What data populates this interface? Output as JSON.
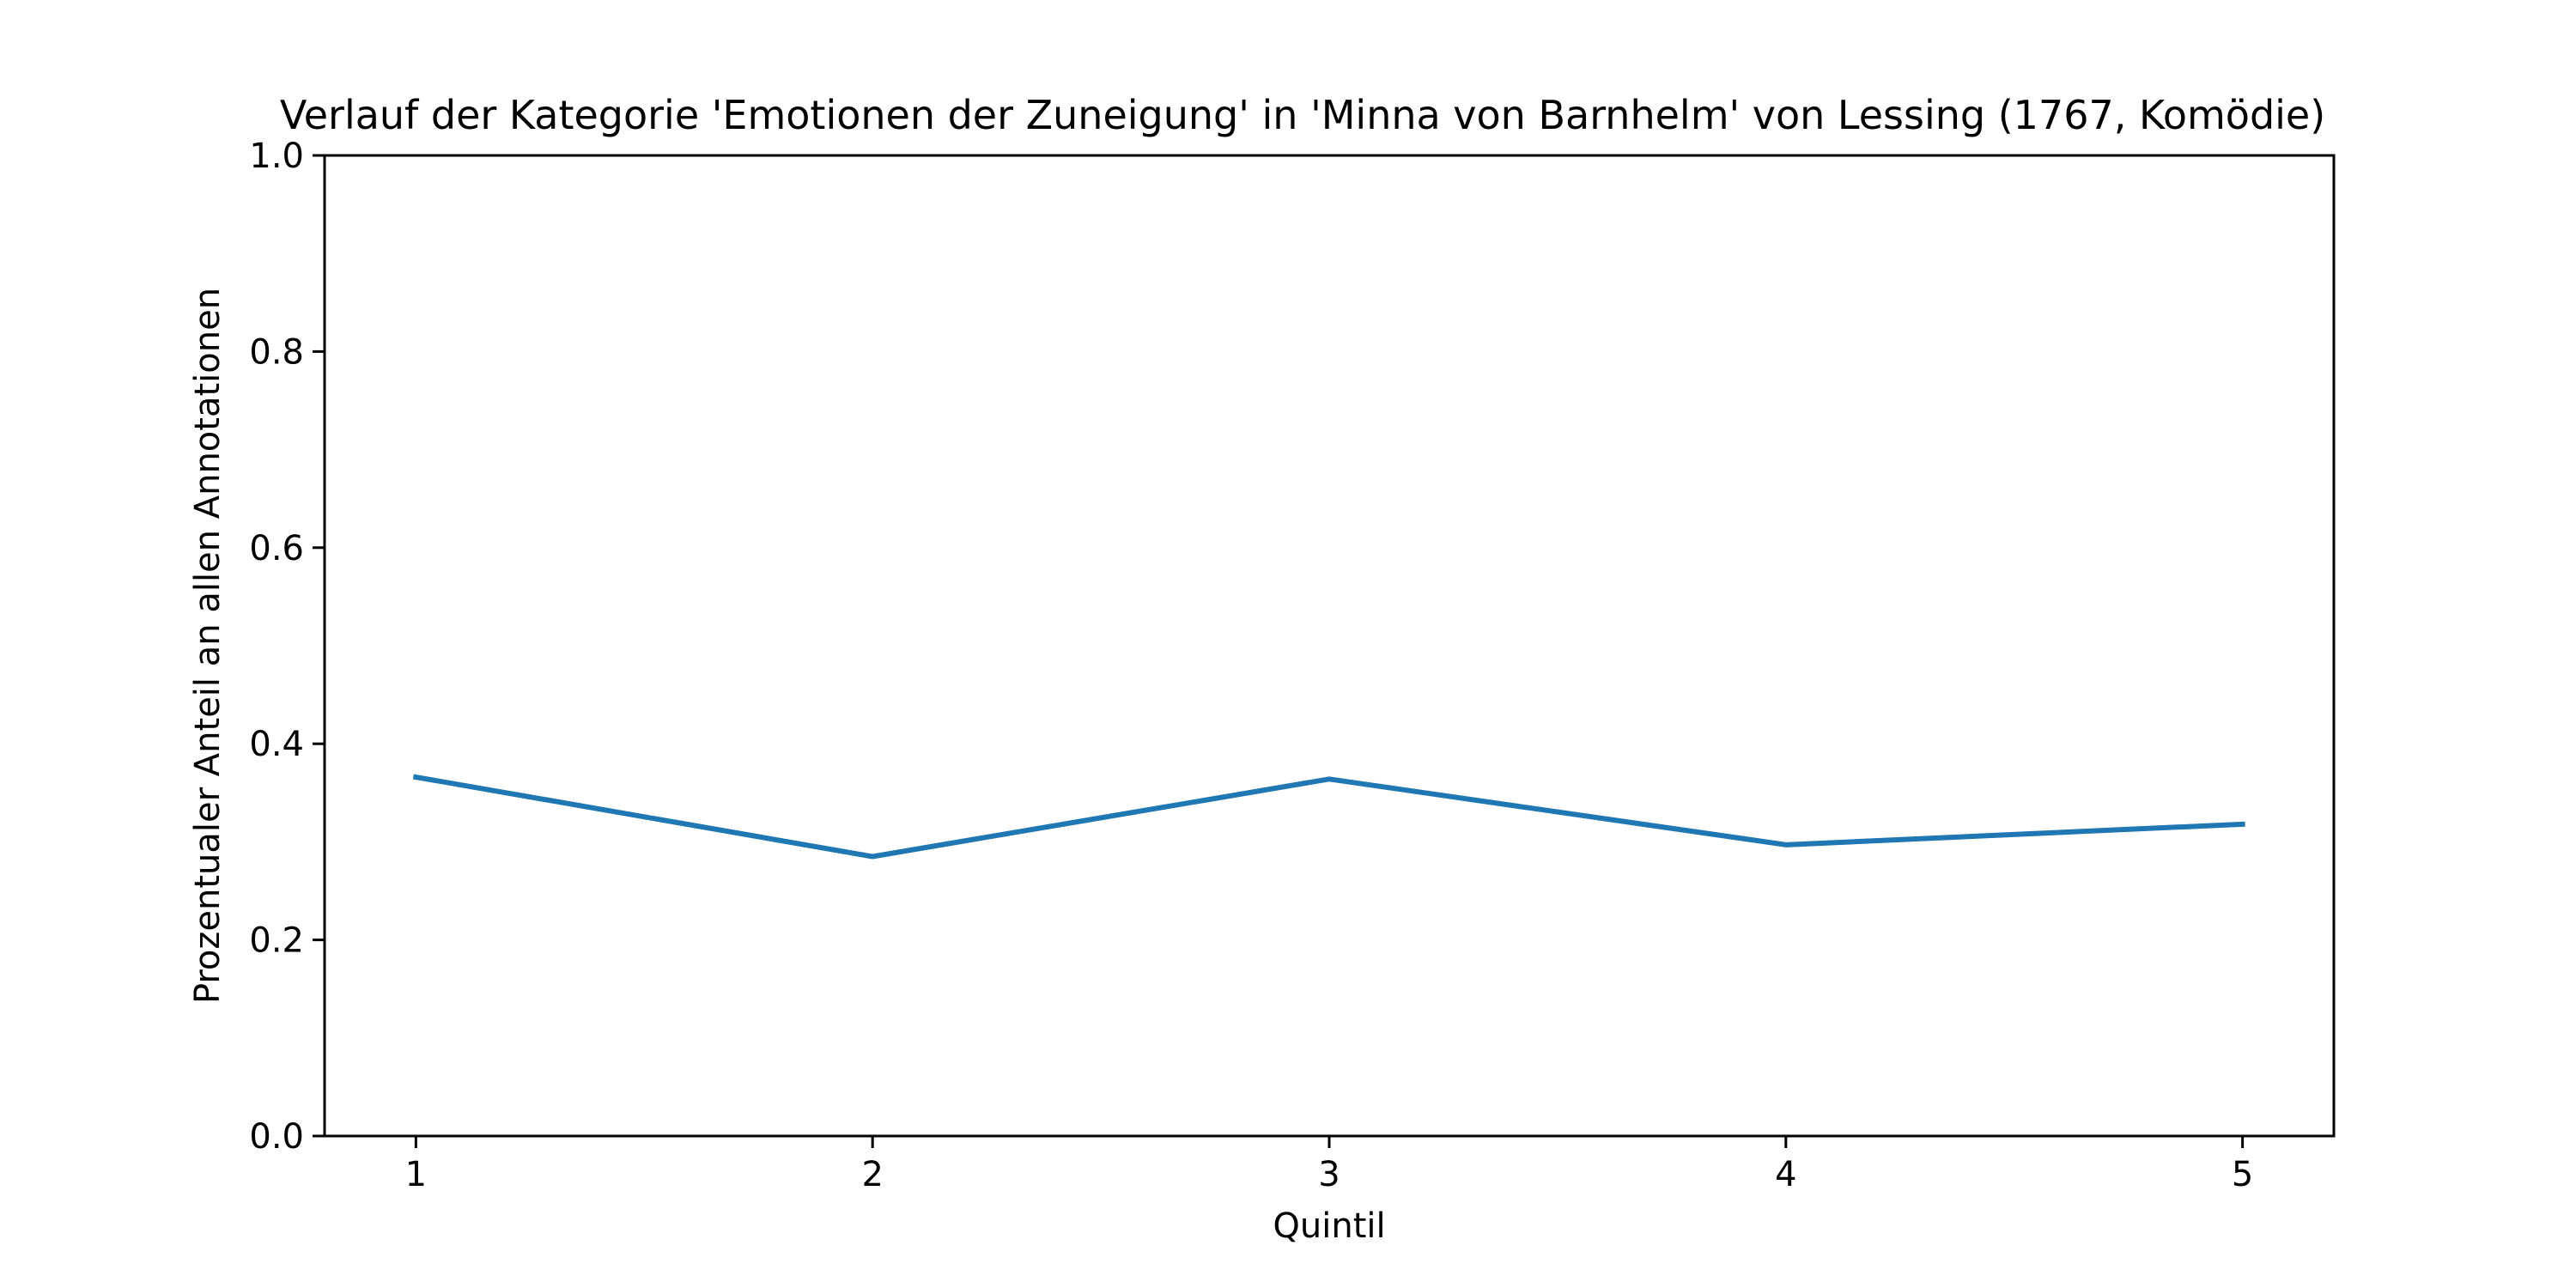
{
  "chart_data": {
    "type": "line",
    "title": "Verlauf der Kategorie 'Emotionen der Zuneigung' in 'Minna von Barnhelm' von Lessing (1767, Komödie)",
    "xlabel": "Quintil",
    "ylabel": "Prozentualer Anteil an allen Annotationen",
    "x": [
      1,
      2,
      3,
      4,
      5
    ],
    "x_tick_labels": [
      "1",
      "2",
      "3",
      "4",
      "5"
    ],
    "xlim": [
      0.8,
      5.2
    ],
    "ylim": [
      0.0,
      1.0
    ],
    "y_ticks": [
      0.0,
      0.2,
      0.4,
      0.6,
      0.8,
      1.0
    ],
    "y_tick_labels": [
      "0.0",
      "0.2",
      "0.4",
      "0.6",
      "0.8",
      "1.0"
    ],
    "series": [
      {
        "values": [
          0.366,
          0.285,
          0.364,
          0.297,
          0.318
        ],
        "color": "#1f77b4"
      }
    ],
    "grid": false,
    "legend": false
  }
}
